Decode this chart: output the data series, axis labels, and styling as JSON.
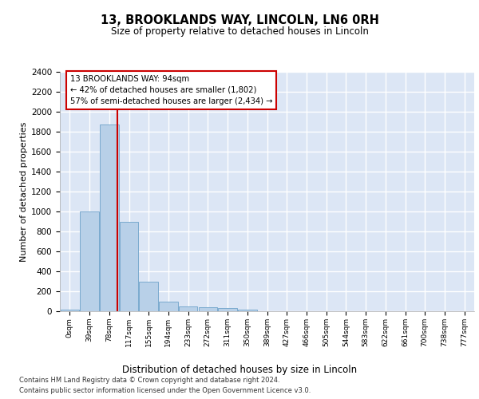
{
  "title_line1": "13, BROOKLANDS WAY, LINCOLN, LN6 0RH",
  "title_line2": "Size of property relative to detached houses in Lincoln",
  "xlabel": "Distribution of detached houses by size in Lincoln",
  "ylabel": "Number of detached properties",
  "categories": [
    "0sqm",
    "39sqm",
    "78sqm",
    "117sqm",
    "155sqm",
    "194sqm",
    "233sqm",
    "272sqm",
    "311sqm",
    "350sqm",
    "389sqm",
    "427sqm",
    "466sqm",
    "505sqm",
    "544sqm",
    "583sqm",
    "622sqm",
    "661sqm",
    "700sqm",
    "738sqm",
    "777sqm"
  ],
  "bar_values": [
    20,
    1000,
    1870,
    900,
    300,
    100,
    50,
    40,
    30,
    20,
    0,
    0,
    0,
    0,
    0,
    0,
    0,
    0,
    0,
    0,
    0
  ],
  "bar_color": "#b8d0e8",
  "bar_edge_color": "#7aaacf",
  "ylim": [
    0,
    2400
  ],
  "yticks": [
    0,
    200,
    400,
    600,
    800,
    1000,
    1200,
    1400,
    1600,
    1800,
    2000,
    2200,
    2400
  ],
  "vline_x": 2.41,
  "vline_color": "#cc0000",
  "annotation_text": "13 BROOKLANDS WAY: 94sqm\n← 42% of detached houses are smaller (1,802)\n57% of semi-detached houses are larger (2,434) →",
  "annotation_box_color": "#cc0000",
  "footer_line1": "Contains HM Land Registry data © Crown copyright and database right 2024.",
  "footer_line2": "Contains public sector information licensed under the Open Government Licence v3.0.",
  "fig_bg_color": "#ffffff",
  "plot_bg_color": "#dce6f5",
  "grid_color": "#ffffff"
}
